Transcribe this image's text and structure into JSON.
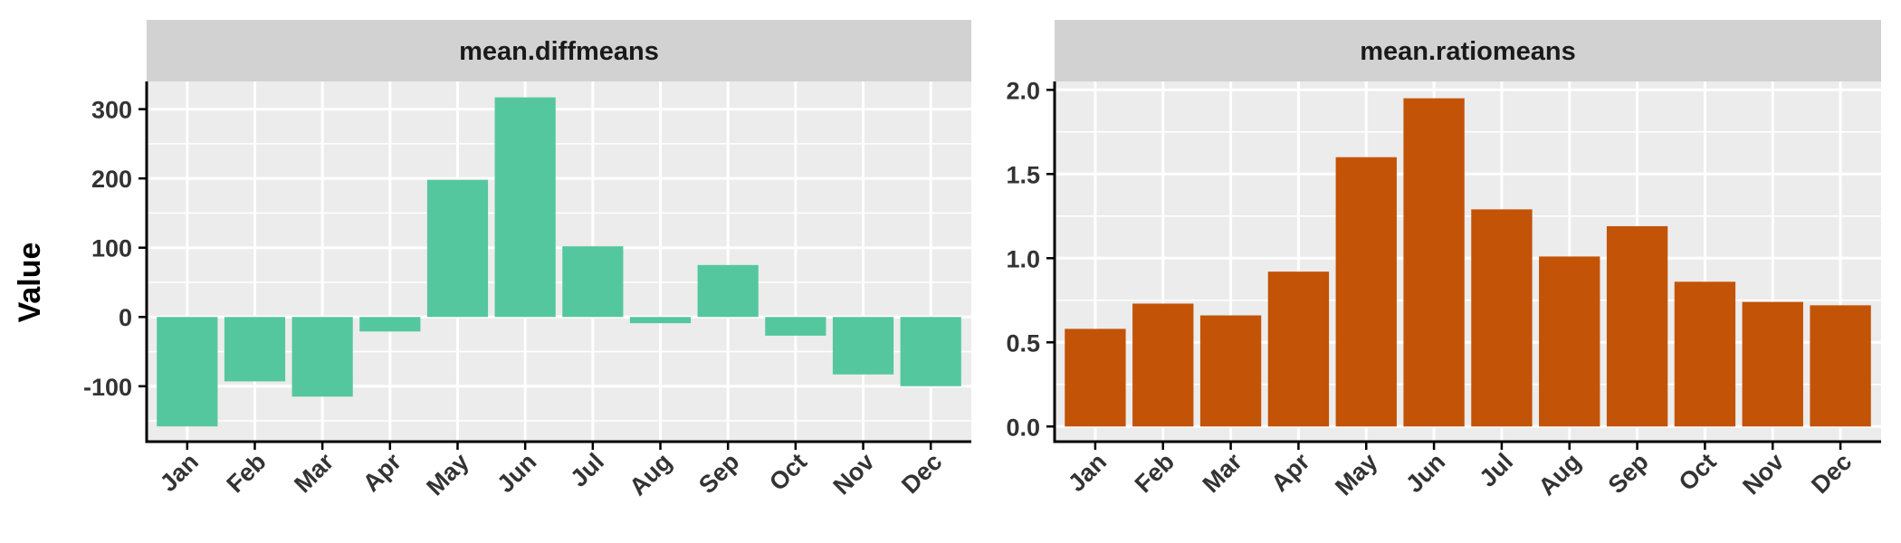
{
  "chart_data": {
    "type": "bar",
    "ylabel": "Value",
    "categories": [
      "Jan",
      "Feb",
      "Mar",
      "Apr",
      "May",
      "Jun",
      "Jul",
      "Aug",
      "Sep",
      "Oct",
      "Nov",
      "Dec"
    ],
    "panels": [
      {
        "title": "mean.diffmeans",
        "color": "#55c79e",
        "values": [
          -158,
          -93,
          -115,
          -21,
          198,
          317,
          102,
          -9,
          75,
          -27,
          -83,
          -100
        ],
        "ylim": [
          -180,
          340
        ],
        "yticks": [
          -100,
          0,
          100,
          200,
          300
        ],
        "ytick_labels": [
          "-100",
          "0",
          "100",
          "200",
          "300"
        ]
      },
      {
        "title": "mean.ratiomeans",
        "color": "#c35306",
        "values": [
          0.58,
          0.73,
          0.66,
          0.92,
          1.6,
          1.95,
          1.29,
          1.01,
          1.19,
          0.86,
          0.74,
          0.72
        ],
        "ylim": [
          -0.09,
          2.05
        ],
        "yticks": [
          0.0,
          0.5,
          1.0,
          1.5,
          2.0
        ],
        "ytick_labels": [
          "0.0",
          "0.5",
          "1.0",
          "1.5",
          "2.0"
        ]
      }
    ],
    "grid": true,
    "legend": "none"
  }
}
